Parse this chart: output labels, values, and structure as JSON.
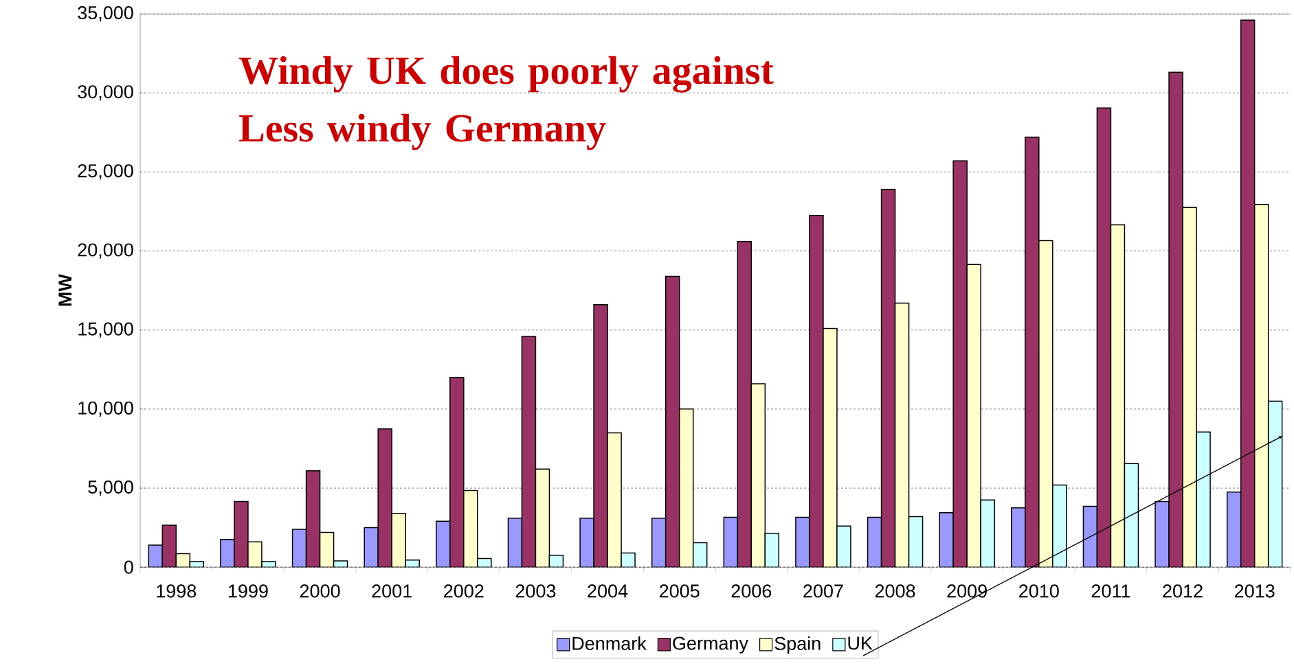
{
  "chart_data": {
    "type": "bar",
    "title": "Windy UK does poorly against Less windy Germany",
    "ylabel": "MW",
    "categories": [
      "1998",
      "1999",
      "2000",
      "2001",
      "2002",
      "2003",
      "2004",
      "2005",
      "2006",
      "2007",
      "2008",
      "2009",
      "2010",
      "2011",
      "2012",
      "2013"
    ],
    "series": [
      {
        "name": "Denmark",
        "color": "#9999ff",
        "values": [
          1400,
          1750,
          2400,
          2500,
          2900,
          3100,
          3100,
          3100,
          3150,
          3150,
          3150,
          3450,
          3750,
          3850,
          4150,
          4750
        ]
      },
      {
        "name": "Germany",
        "color": "#993366",
        "values": [
          2650,
          4150,
          6100,
          8750,
          12000,
          14600,
          16600,
          18400,
          20600,
          22250,
          23900,
          25700,
          27200,
          29050,
          31300,
          34600
        ]
      },
      {
        "name": "Spain",
        "color": "#ffffcc",
        "values": [
          850,
          1600,
          2200,
          3400,
          4850,
          6200,
          8500,
          10000,
          11600,
          15100,
          16700,
          19150,
          20650,
          21650,
          22750,
          22950
        ]
      },
      {
        "name": "UK",
        "color": "#ccffff",
        "values": [
          350,
          350,
          400,
          450,
          550,
          750,
          900,
          1550,
          2150,
          2600,
          3200,
          4250,
          5200,
          6550,
          8550,
          10500
        ]
      }
    ],
    "ylim": [
      0,
      35000
    ],
    "yticks": [
      0,
      {
        "value": 5000,
        "label": "5,000"
      },
      {
        "value": 10000,
        "label": "10,000"
      },
      {
        "value": 15000,
        "label": "15,000"
      },
      {
        "value": 20000,
        "label": "20,000"
      },
      {
        "value": 25000,
        "label": "25,000"
      },
      {
        "value": 30000,
        "label": "30,000"
      },
      {
        "value": 35000,
        "label": "35,000"
      }
    ],
    "grid": "y",
    "legend": "bottom"
  }
}
